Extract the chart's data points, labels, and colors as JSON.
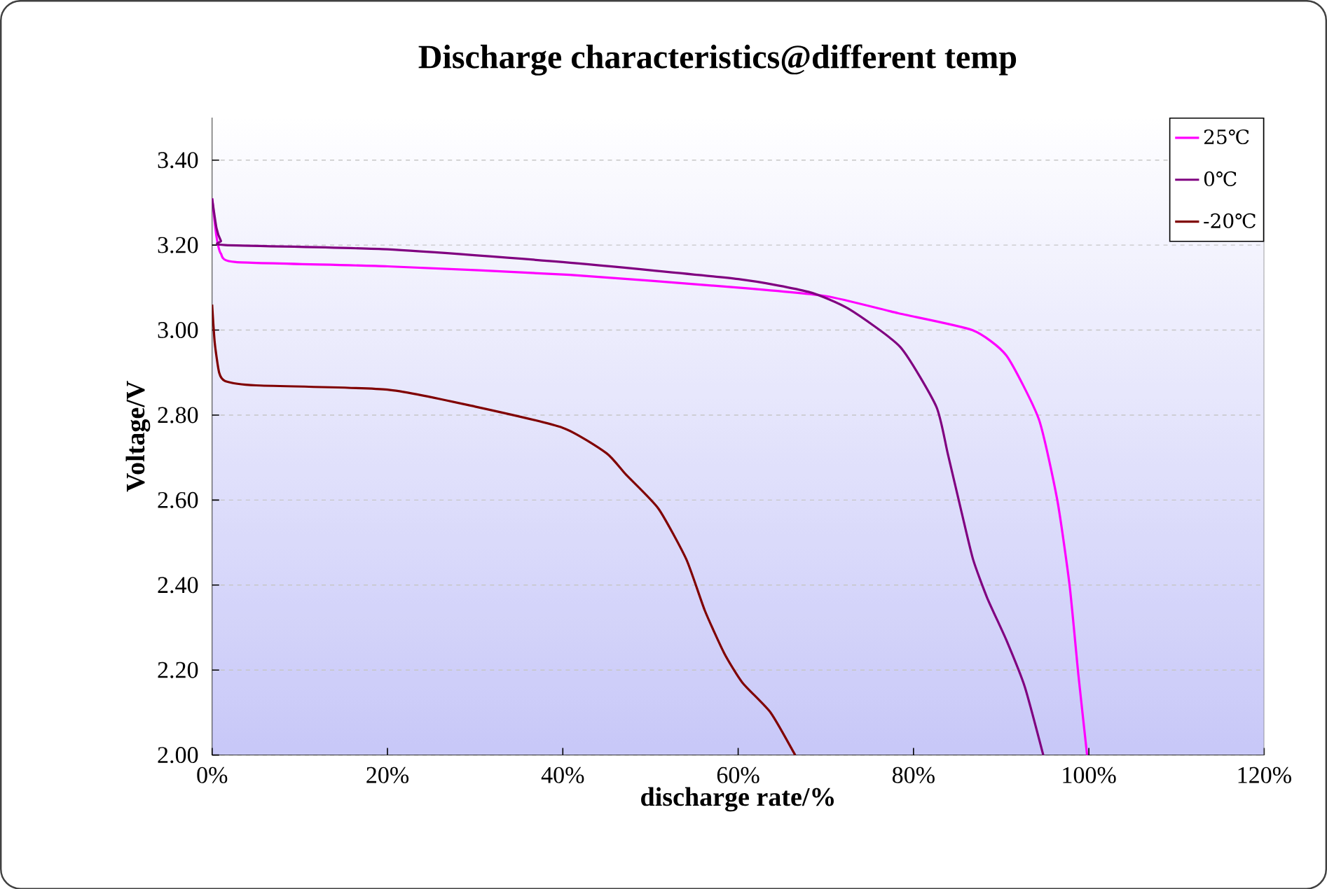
{
  "chart_data": {
    "type": "line",
    "title": "Discharge characteristics@different temp",
    "xlabel": "discharge rate/%",
    "ylabel": "Voltage/V",
    "xlim": [
      0,
      120
    ],
    "ylim": [
      2.0,
      3.5
    ],
    "xticks": [
      {
        "value": 0,
        "label": "0%"
      },
      {
        "value": 20,
        "label": "20%"
      },
      {
        "value": 40,
        "label": "40%"
      },
      {
        "value": 60,
        "label": "60%"
      },
      {
        "value": 80,
        "label": "80%"
      },
      {
        "value": 100,
        "label": "100%"
      },
      {
        "value": 120,
        "label": "120%"
      }
    ],
    "yticks": [
      {
        "value": 2.0,
        "label": "2.00"
      },
      {
        "value": 2.2,
        "label": "2.20"
      },
      {
        "value": 2.4,
        "label": "2.40"
      },
      {
        "value": 2.6,
        "label": "2.60"
      },
      {
        "value": 2.8,
        "label": "2.80"
      },
      {
        "value": 3.0,
        "label": "3.00"
      },
      {
        "value": 3.2,
        "label": "3.20"
      },
      {
        "value": 3.4,
        "label": "3.40"
      }
    ],
    "grid": "y",
    "legend": "top right",
    "marker": "none",
    "line_style": "solid",
    "series": [
      {
        "name": "25℃",
        "color": "#ff00ff",
        "x": [
          0,
          0.5,
          1,
          2.7,
          20,
          40.8,
          60,
          70,
          78.2,
          86.7,
          90.6,
          94.3,
          96.4,
          97.8,
          98.8,
          99.8
        ],
        "values": [
          3.31,
          3.22,
          3.18,
          3.16,
          3.15,
          3.13,
          3.1,
          3.08,
          3.04,
          3.0,
          2.94,
          2.79,
          2.6,
          2.4,
          2.19,
          2.0
        ]
      },
      {
        "name": "0℃",
        "color": "#800080",
        "x": [
          0,
          0.5,
          1,
          1.5,
          20,
          40,
          60,
          68,
          72.6,
          78.5,
          82.6,
          83.9,
          85.5,
          86.8,
          88.4,
          90.6,
          92.7,
          94.8
        ],
        "values": [
          3.31,
          3.24,
          3.21,
          3.2,
          3.19,
          3.16,
          3.12,
          3.09,
          3.05,
          2.96,
          2.82,
          2.71,
          2.57,
          2.46,
          2.37,
          2.27,
          2.16,
          2.0
        ]
      },
      {
        "name": "-20℃",
        "color": "#800000",
        "x": [
          0,
          0.3,
          0.8,
          1.5,
          5,
          20,
          30,
          40,
          45,
          47.2,
          50.9,
          54.1,
          56.2,
          58.4,
          60.5,
          63.7,
          66.5
        ],
        "values": [
          3.06,
          2.97,
          2.9,
          2.88,
          2.87,
          2.86,
          2.82,
          2.77,
          2.71,
          2.66,
          2.58,
          2.46,
          2.34,
          2.24,
          2.17,
          2.1,
          2.0
        ]
      }
    ]
  }
}
